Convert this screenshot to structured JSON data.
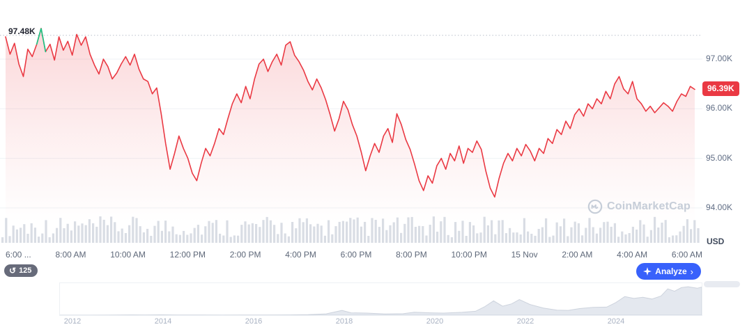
{
  "chart": {
    "high_label": "97.48K",
    "current_price_label": "96.39K",
    "currency_label": "USD",
    "y_axis_labels": [
      "97.00K",
      "96.00K",
      "95.00K",
      "94.00K"
    ],
    "x_axis_labels": [
      "6:00 ...",
      "8:00 AM",
      "10:00 AM",
      "12:00 PM",
      "2:00 PM",
      "4:00 PM",
      "6:00 PM",
      "8:00 PM",
      "10:00 PM",
      "15 Nov",
      "2:00 AM",
      "4:00 AM",
      "6:00 AM"
    ]
  },
  "chart_data": {
    "type": "line",
    "title": "Intraday price (thousand USD)",
    "unit": "K USD",
    "x_tick_labels": [
      "6:00 ...",
      "8:00 AM",
      "10:00 AM",
      "12:00 PM",
      "2:00 PM",
      "4:00 PM",
      "6:00 PM",
      "8:00 PM",
      "10:00 PM",
      "15 Nov",
      "2:00 AM",
      "4:00 AM",
      "6:00 AM"
    ],
    "y_ticks_k": [
      97,
      96,
      95,
      94
    ],
    "y_range_k": [
      93.8,
      97.8
    ],
    "high_k": 97.48,
    "current_k": 96.39,
    "green_spike_index": 8,
    "grid": true,
    "legend": false,
    "series": [
      {
        "name": "price_k",
        "values": [
          97.45,
          97.1,
          97.32,
          96.9,
          96.65,
          97.2,
          97.05,
          97.3,
          97.62,
          97.15,
          97.3,
          96.98,
          97.45,
          97.18,
          97.36,
          97.08,
          97.5,
          97.28,
          97.45,
          97.1,
          96.88,
          96.7,
          97.0,
          96.85,
          96.6,
          96.72,
          96.9,
          97.05,
          96.88,
          97.1,
          96.8,
          96.6,
          96.55,
          96.3,
          96.42,
          95.9,
          95.3,
          94.78,
          95.1,
          95.45,
          95.2,
          95.0,
          94.7,
          94.55,
          94.9,
          95.2,
          95.05,
          95.3,
          95.6,
          95.48,
          95.8,
          96.1,
          96.3,
          96.12,
          96.45,
          96.2,
          96.6,
          96.9,
          97.0,
          96.75,
          96.95,
          97.1,
          96.88,
          97.28,
          97.35,
          97.08,
          96.95,
          96.78,
          96.55,
          96.38,
          96.6,
          96.42,
          96.18,
          95.88,
          95.55,
          95.8,
          96.15,
          95.98,
          95.68,
          95.45,
          95.12,
          94.75,
          95.05,
          95.3,
          95.12,
          95.45,
          95.6,
          95.32,
          95.9,
          95.68,
          95.38,
          95.18,
          94.88,
          94.55,
          94.35,
          94.65,
          94.5,
          94.85,
          95.0,
          94.78,
          95.1,
          94.95,
          95.25,
          94.9,
          95.2,
          95.12,
          95.35,
          95.18,
          94.75,
          94.4,
          94.22,
          94.6,
          94.9,
          95.1,
          94.95,
          95.2,
          95.05,
          95.28,
          95.15,
          94.95,
          95.2,
          95.1,
          95.4,
          95.3,
          95.58,
          95.48,
          95.75,
          95.6,
          95.88,
          96.0,
          95.85,
          96.1,
          96.0,
          96.2,
          96.1,
          96.35,
          96.2,
          96.5,
          96.65,
          96.4,
          96.3,
          96.55,
          96.2,
          96.1,
          95.95,
          96.05,
          95.92,
          96.02,
          96.12,
          96.05,
          95.95,
          96.15,
          96.3,
          96.25,
          96.45,
          96.39
        ]
      }
    ],
    "volume_bars": {
      "style": "decorative gray comb along bottom of chart"
    },
    "mini": {
      "type": "area",
      "x_range_years": [
        2011.7,
        2025.9
      ],
      "tick_years": [
        "2012",
        "2014",
        "2016",
        "2018",
        "2020",
        "2022",
        "2024"
      ],
      "x_years": [
        2011.7,
        2012.2,
        2012.8,
        2013.3,
        2013.6,
        2013.95,
        2014.3,
        2014.8,
        2015.3,
        2015.8,
        2016.3,
        2016.8,
        2017.2,
        2017.6,
        2017.95,
        2018.15,
        2018.5,
        2018.9,
        2019.3,
        2019.55,
        2019.9,
        2020.2,
        2020.6,
        2020.9,
        2021.1,
        2021.3,
        2021.5,
        2021.7,
        2021.87,
        2022.1,
        2022.4,
        2022.7,
        2022.95,
        2023.2,
        2023.5,
        2023.8,
        2024.0,
        2024.2,
        2024.4,
        2024.6,
        2024.8,
        2025.0,
        2025.15,
        2025.3,
        2025.45,
        2025.6,
        2025.8,
        2025.9
      ],
      "values_k": [
        0.1,
        0.1,
        0.2,
        1,
        0.8,
        1.1,
        0.7,
        0.4,
        0.3,
        0.4,
        0.6,
        0.9,
        1.8,
        4.5,
        16,
        8,
        7,
        4,
        5,
        10,
        8,
        7,
        9.5,
        13,
        28,
        48,
        30,
        38,
        52,
        36,
        24,
        17,
        16,
        22,
        26,
        27,
        42,
        62,
        56,
        60,
        54,
        64,
        88,
        80,
        92,
        95,
        90,
        94
      ]
    }
  },
  "toolbar": {
    "countdown": "125",
    "history_icon": "↺",
    "analyze_label": "Analyze",
    "analyze_chevron": "›"
  },
  "watermark": {
    "text": "CoinMarketCap"
  },
  "colors": {
    "line_red": "#ea3943",
    "spike_green": "#16c784",
    "analyze_blue": "#3861fb",
    "grid": "#eff2f5",
    "dotted_high_line": "#b9c0cc",
    "axis_text": "#616e85",
    "volume_bar": "#d9dde4",
    "watermark": "#c6cdd8",
    "mini_fill": "#e4e8ef",
    "mini_stroke": "#cdd3dd"
  }
}
